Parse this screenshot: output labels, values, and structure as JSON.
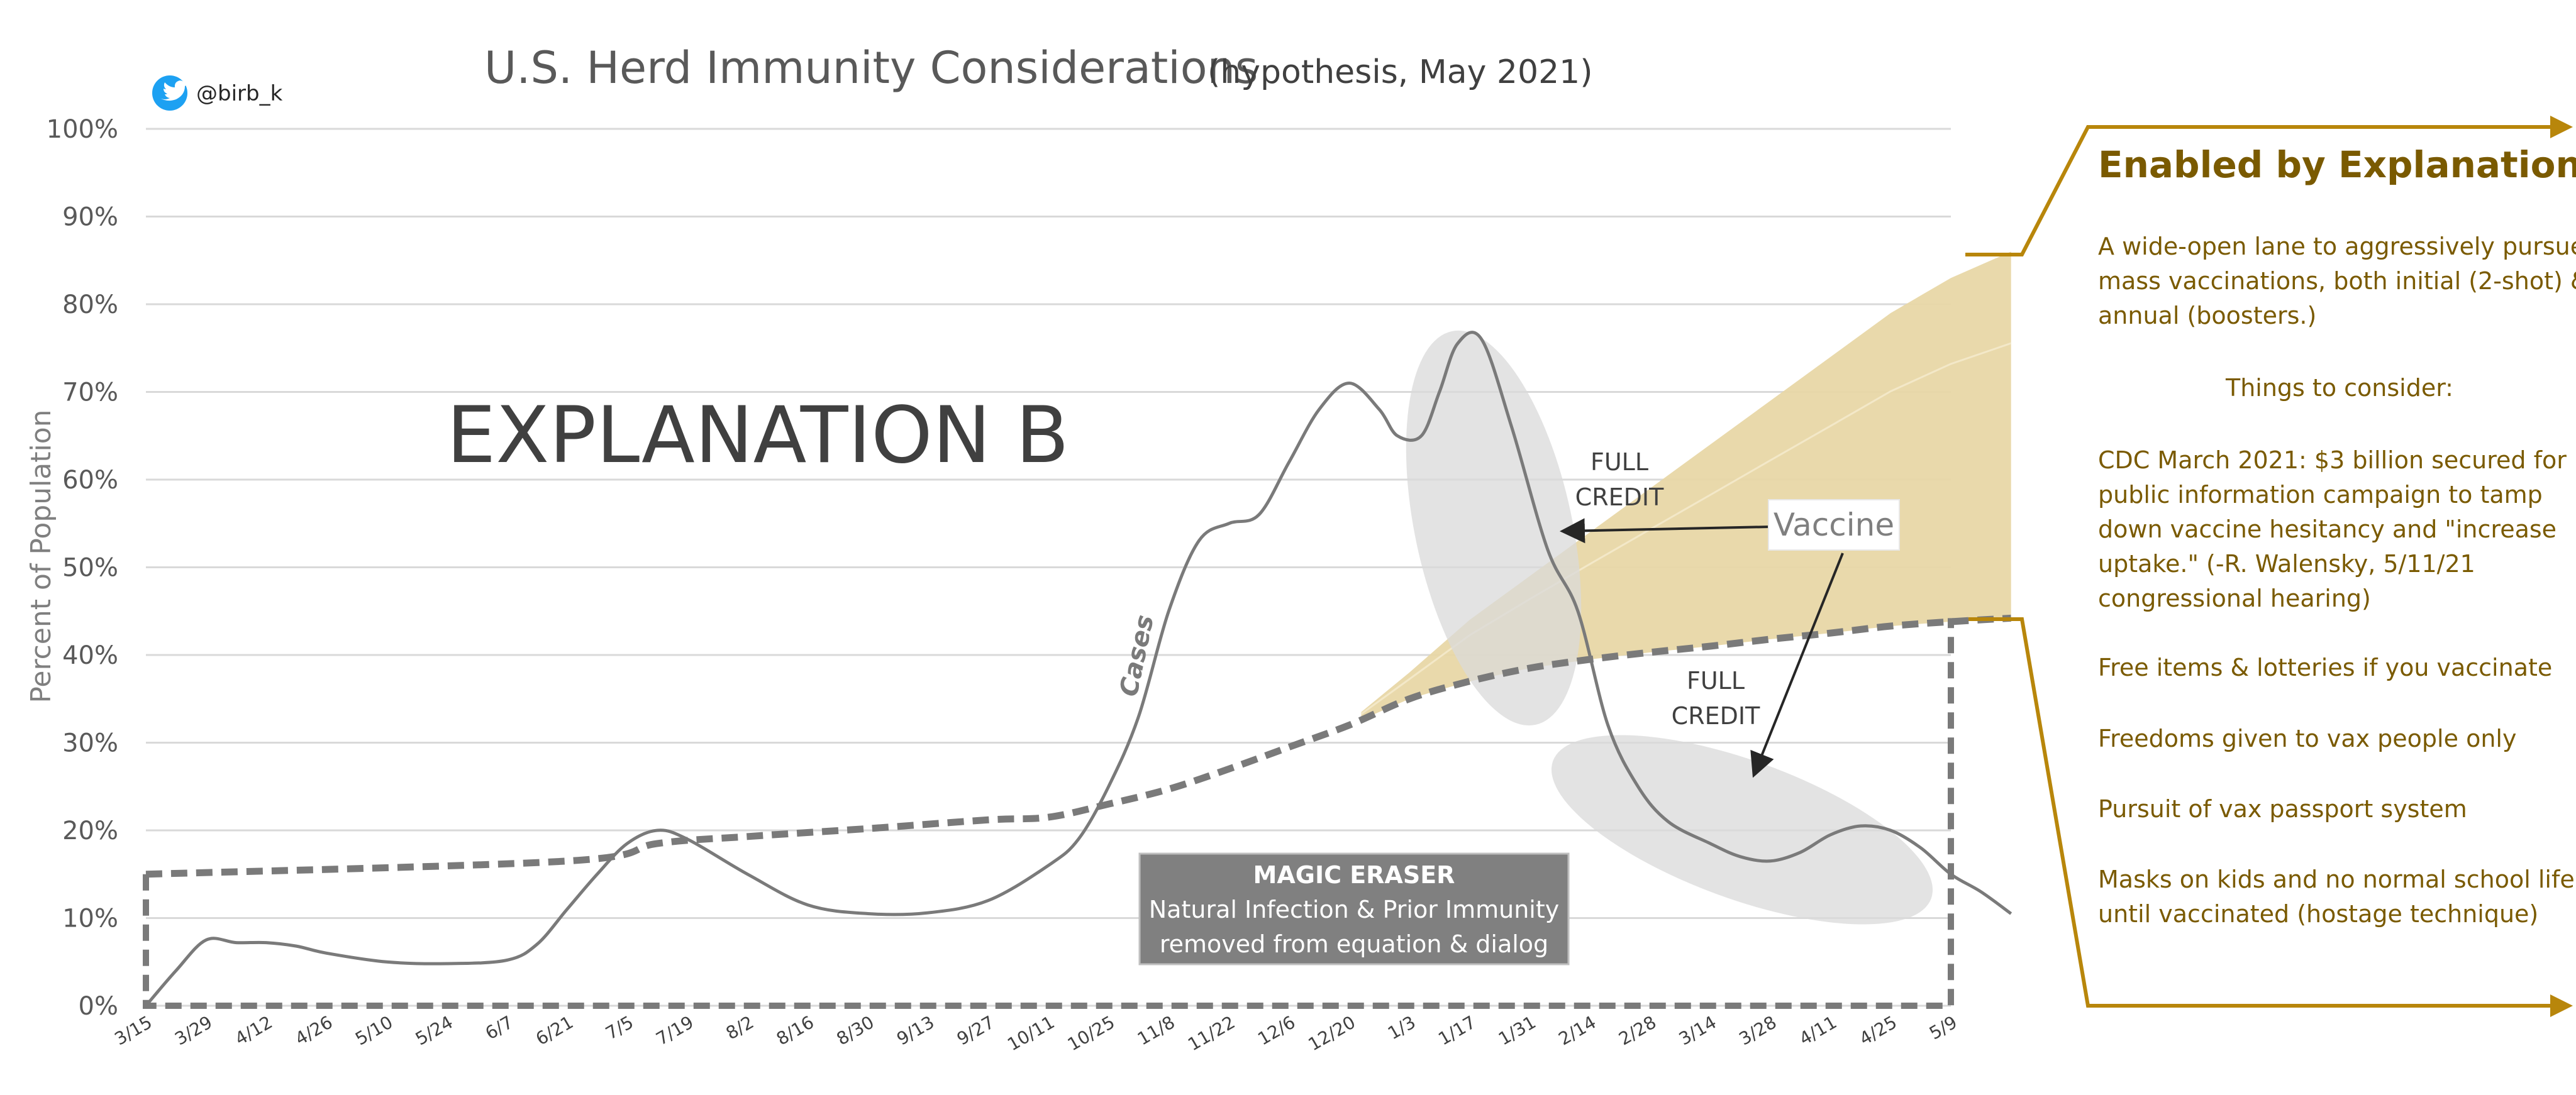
{
  "header": {
    "title": "U.S. Herd Immunity Considerations",
    "subtitle": "(hypothesis, May 2021)",
    "twitter_handle": "@birb_k"
  },
  "colors": {
    "series_gray": "#7a7a7a",
    "vaccine_fill": "#e8d7a6",
    "ellipse_fill": "#d9d9d9",
    "side_text": "#7a5a00",
    "bracket": "#b8860b",
    "magic_eraser_bg": "#808080"
  },
  "chart_data": {
    "type": "line",
    "title": "U.S. Herd Immunity Considerations",
    "subtitle": "(hypothesis, May 2021)",
    "xlabel": "",
    "ylabel": "Percent of Population",
    "ylim": [
      0,
      100
    ],
    "yticks": [
      "0%",
      "10%",
      "20%",
      "30%",
      "40%",
      "50%",
      "60%",
      "70%",
      "80%",
      "90%",
      "100%"
    ],
    "grid": true,
    "categories": [
      "3/15",
      "3/29",
      "4/12",
      "4/26",
      "5/10",
      "5/24",
      "6/7",
      "6/21",
      "7/5",
      "7/19",
      "8/2",
      "8/16",
      "8/30",
      "9/13",
      "9/27",
      "10/11",
      "10/25",
      "11/8",
      "11/22",
      "12/6",
      "12/20",
      "1/3",
      "1/17",
      "1/31",
      "2/14",
      "2/28",
      "3/14",
      "3/28",
      "4/11",
      "4/25",
      "5/9"
    ],
    "series": [
      {
        "name": "Cases",
        "style": "solid",
        "points": [
          [
            0,
            0
          ],
          [
            0.5,
            4
          ],
          [
            1,
            7.5
          ],
          [
            1.5,
            7.2
          ],
          [
            2,
            7.2
          ],
          [
            2.5,
            6.8
          ],
          [
            3,
            6
          ],
          [
            4,
            5
          ],
          [
            5,
            4.8
          ],
          [
            6,
            5.2
          ],
          [
            6.5,
            7
          ],
          [
            7,
            11
          ],
          [
            7.5,
            15
          ],
          [
            8,
            18.5
          ],
          [
            8.5,
            20
          ],
          [
            9,
            19
          ],
          [
            10,
            15
          ],
          [
            11,
            11.5
          ],
          [
            12,
            10.5
          ],
          [
            13,
            10.6
          ],
          [
            14,
            12
          ],
          [
            15,
            16
          ],
          [
            15.5,
            19
          ],
          [
            16,
            25
          ],
          [
            16.5,
            33
          ],
          [
            17,
            45
          ],
          [
            17.5,
            53
          ],
          [
            18,
            55
          ],
          [
            18.5,
            56
          ],
          [
            19,
            62
          ],
          [
            19.5,
            68
          ],
          [
            20,
            71
          ],
          [
            20.5,
            68
          ],
          [
            20.8,
            65
          ],
          [
            21.2,
            65
          ],
          [
            21.5,
            70
          ],
          [
            21.8,
            75.5
          ],
          [
            22.2,
            76
          ],
          [
            22.7,
            66
          ],
          [
            23.3,
            52
          ],
          [
            23.8,
            45
          ],
          [
            24.3,
            32
          ],
          [
            24.8,
            25
          ],
          [
            25.3,
            21
          ],
          [
            26,
            18.5
          ],
          [
            26.5,
            17
          ],
          [
            27,
            16.5
          ],
          [
            27.5,
            17.5
          ],
          [
            28,
            19.5
          ],
          [
            28.5,
            20.5
          ],
          [
            29,
            20
          ],
          [
            29.5,
            18
          ],
          [
            30,
            15
          ],
          [
            30.5,
            13
          ],
          [
            31,
            10.5
          ]
        ]
      },
      {
        "name": "Immunity (dashed)",
        "style": "dashed",
        "points": [
          [
            0,
            15
          ],
          [
            7,
            16.5
          ],
          [
            8.5,
            18.5
          ],
          [
            10,
            19.3
          ],
          [
            12,
            20.2
          ],
          [
            14,
            21.2
          ],
          [
            15,
            21.5
          ],
          [
            16,
            23
          ],
          [
            17,
            24.7
          ],
          [
            18,
            27
          ],
          [
            19,
            29.5
          ],
          [
            20,
            32
          ],
          [
            21,
            35
          ],
          [
            22,
            37
          ],
          [
            23,
            38.5
          ],
          [
            24,
            39.5
          ],
          [
            25,
            40.3
          ],
          [
            26,
            41
          ],
          [
            27,
            41.8
          ],
          [
            28,
            42.5
          ],
          [
            29,
            43.3
          ],
          [
            30,
            43.8
          ],
          [
            31,
            44.2
          ]
        ]
      },
      {
        "name": "Vaccine",
        "style": "area",
        "upper_points": [
          [
            20.2,
            33.5
          ],
          [
            21,
            38
          ],
          [
            22,
            44
          ],
          [
            23,
            49
          ],
          [
            24,
            54
          ],
          [
            25,
            59
          ],
          [
            26,
            64
          ],
          [
            27,
            69
          ],
          [
            28,
            74
          ],
          [
            29,
            79
          ],
          [
            30,
            83
          ],
          [
            31,
            86
          ]
        ]
      }
    ],
    "annotations": {
      "explanation": "EXPLANATION B",
      "cases_label": "Cases",
      "vaccine_label": "Vaccine",
      "full_credit_1": [
        "FULL",
        "CREDIT"
      ],
      "full_credit_2": [
        "FULL",
        "CREDIT"
      ],
      "magic_eraser_title": "MAGIC ERASER",
      "magic_eraser_line1": "Natural Infection & Prior Immunity",
      "magic_eraser_line2": "removed from equation & dialog"
    }
  },
  "side_panel": {
    "heading": "Enabled by Explanation B",
    "intro_lines": [
      "A wide-open lane to aggressively pursue",
      "mass vaccinations, both initial (2-shot) &",
      "annual (boosters.)"
    ],
    "consider_heading": "Things to consider:",
    "cdc_lines": [
      "CDC March 2021: $3 billion secured for",
      "public information campaign to tamp",
      "down vaccine hesitancy and \"increase",
      "uptake.\" (-R. Walensky,  5/11/21",
      "congressional hearing)"
    ],
    "item_free": "Free items & lotteries if you vaccinate",
    "item_freedoms": "Freedoms given to vax people only",
    "item_passport": "Pursuit of vax passport system",
    "masks_lines": [
      "Masks on kids and no normal school life",
      "until vaccinated (hostage technique)"
    ]
  }
}
